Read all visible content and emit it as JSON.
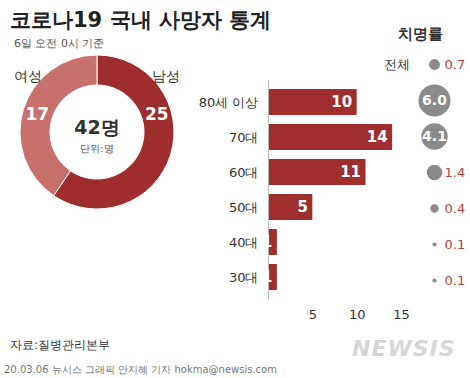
{
  "title": "코로나19 국내 사망자 통계",
  "subtitle": "6일 오전 0시 기준",
  "source": "자료:질병관리본부",
  "credit": "20.03.06 뉴시스 그래픽 안지혜 기자 hokma@newsis.com",
  "logo": "NEWSIS",
  "chart_data": [
    {
      "type": "pie",
      "categories": [
        "남성",
        "여성"
      ],
      "values": [
        25,
        17
      ],
      "colors": [
        "#9e2d2d",
        "#c8706c"
      ],
      "annotations": [
        "42명",
        "단위:명"
      ],
      "data_labels": true
    },
    {
      "type": "bar",
      "orientation": "horizontal",
      "categories": [
        "80세 이상",
        "70대",
        "60대",
        "50대",
        "40대",
        "30대"
      ],
      "values": [
        10,
        14,
        11,
        5,
        1,
        1
      ],
      "color": "#9f2f2c",
      "xlim": [
        0,
        15
      ],
      "xticks": [
        5,
        10,
        15
      ],
      "grid": false,
      "data_labels": true
    },
    {
      "type": "scatter",
      "title": "치명률",
      "categories": [
        "전체",
        null,
        null,
        null,
        null,
        null,
        null
      ],
      "values": [
        0.7,
        6.0,
        4.1,
        1.4,
        0.4,
        0.1,
        0.1
      ],
      "value_labels": [
        "0.7",
        "6.0",
        "4.1",
        "1.4",
        "0.4",
        "0.1",
        "0.1"
      ],
      "color": "#8a8a8a",
      "data_labels": true,
      "tick_labels": "y"
    }
  ]
}
